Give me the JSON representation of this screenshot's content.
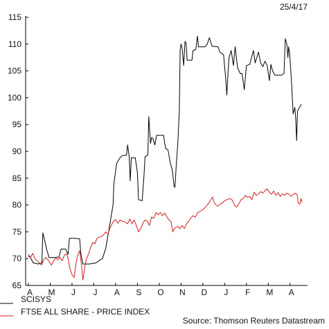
{
  "date_label": "25/4/17",
  "source": "Source: Thomson Reuters Datastream",
  "chart_data": {
    "type": "line",
    "title": "",
    "xlabel": "",
    "ylabel": "",
    "ylim": [
      65,
      115
    ],
    "y_ticks": [
      65,
      70,
      75,
      80,
      85,
      90,
      95,
      100,
      105,
      110,
      115
    ],
    "x_tick_labels": [
      "A",
      "M",
      "J",
      "J",
      "A",
      "S",
      "O",
      "N",
      "D",
      "J",
      "F",
      "M",
      "A"
    ],
    "x_range": [
      0,
      12.8
    ],
    "grid": false,
    "legend_position": "bottom-left",
    "series": [
      {
        "name": "SCISYS",
        "color": "#000000",
        "points": [
          [
            0.0,
            70.5
          ],
          [
            0.1,
            70.2
          ],
          [
            0.22,
            69.2
          ],
          [
            0.45,
            69.0
          ],
          [
            0.62,
            69.2
          ],
          [
            0.66,
            74.8
          ],
          [
            0.74,
            73.5
          ],
          [
            0.85,
            71.5
          ],
          [
            0.95,
            70.2
          ],
          [
            1.2,
            70.2
          ],
          [
            1.4,
            70.3
          ],
          [
            1.5,
            71.8
          ],
          [
            1.7,
            71.8
          ],
          [
            1.82,
            70.8
          ],
          [
            1.88,
            73.8
          ],
          [
            2.1,
            73.8
          ],
          [
            2.35,
            73.7
          ],
          [
            2.4,
            71.0
          ],
          [
            2.5,
            69.0
          ],
          [
            2.8,
            69.0
          ],
          [
            3.1,
            69.2
          ],
          [
            3.3,
            69.8
          ],
          [
            3.4,
            70.0
          ],
          [
            3.55,
            72.0
          ],
          [
            3.72,
            76.0
          ],
          [
            3.88,
            80.0
          ],
          [
            3.92,
            84.0
          ],
          [
            3.98,
            85.8
          ],
          [
            4.05,
            87.8
          ],
          [
            4.2,
            88.8
          ],
          [
            4.3,
            89.2
          ],
          [
            4.5,
            89.3
          ],
          [
            4.55,
            91.2
          ],
          [
            4.62,
            89.0
          ],
          [
            4.67,
            84.5
          ],
          [
            4.72,
            88.8
          ],
          [
            4.9,
            88.8
          ],
          [
            5.0,
            86.0
          ],
          [
            5.05,
            81.0
          ],
          [
            5.22,
            80.8
          ],
          [
            5.3,
            85.5
          ],
          [
            5.35,
            89.0
          ],
          [
            5.48,
            89.3
          ],
          [
            5.52,
            96.5
          ],
          [
            5.6,
            91.5
          ],
          [
            5.65,
            92.6
          ],
          [
            5.72,
            92.3
          ],
          [
            5.8,
            91.2
          ],
          [
            5.88,
            93.0
          ],
          [
            6.2,
            93.0
          ],
          [
            6.25,
            91.5
          ],
          [
            6.3,
            90.5
          ],
          [
            6.4,
            90.3
          ],
          [
            6.5,
            88.0
          ],
          [
            6.6,
            86.5
          ],
          [
            6.68,
            83.5
          ],
          [
            6.72,
            83.3
          ],
          [
            6.78,
            87.5
          ],
          [
            6.85,
            91.5
          ],
          [
            6.92,
            97.5
          ],
          [
            6.96,
            109.0
          ],
          [
            7.0,
            110.0
          ],
          [
            7.05,
            109.2
          ],
          [
            7.12,
            106.0
          ],
          [
            7.18,
            110.5
          ],
          [
            7.23,
            110.2
          ],
          [
            7.28,
            107.0
          ],
          [
            7.5,
            107.0
          ],
          [
            7.55,
            108.8
          ],
          [
            7.68,
            109.0
          ],
          [
            7.75,
            111.5
          ],
          [
            7.8,
            109.5
          ],
          [
            8.1,
            109.5
          ],
          [
            8.2,
            110.0
          ],
          [
            8.3,
            111.2
          ],
          [
            8.42,
            109.6
          ],
          [
            8.7,
            109.5
          ],
          [
            8.78,
            108.5
          ],
          [
            8.95,
            108.0
          ],
          [
            9.05,
            103.5
          ],
          [
            9.1,
            100.5
          ],
          [
            9.15,
            104.5
          ],
          [
            9.2,
            107.5
          ],
          [
            9.3,
            108.8
          ],
          [
            9.4,
            106.0
          ],
          [
            9.48,
            109.5
          ],
          [
            9.55,
            107.0
          ],
          [
            9.6,
            105.5
          ],
          [
            9.72,
            104.5
          ],
          [
            9.8,
            104.5
          ],
          [
            9.9,
            101.5
          ],
          [
            10.0,
            106.0
          ],
          [
            10.15,
            106.2
          ],
          [
            10.25,
            107.8
          ],
          [
            10.32,
            108.8
          ],
          [
            10.4,
            106.5
          ],
          [
            10.55,
            108.5
          ],
          [
            10.65,
            106.5
          ],
          [
            10.75,
            105.8
          ],
          [
            10.85,
            106.8
          ],
          [
            10.95,
            106.0
          ],
          [
            11.05,
            103.2
          ],
          [
            11.12,
            106.2
          ],
          [
            11.2,
            105.0
          ],
          [
            11.3,
            104.2
          ],
          [
            11.6,
            104.2
          ],
          [
            11.72,
            104.5
          ],
          [
            11.78,
            111.0
          ],
          [
            11.85,
            110.0
          ],
          [
            11.9,
            107.5
          ],
          [
            11.93,
            109.5
          ],
          [
            11.98,
            108.3
          ],
          [
            12.08,
            102.0
          ],
          [
            12.14,
            97.0
          ],
          [
            12.22,
            98.2
          ],
          [
            12.26,
            96.0
          ],
          [
            12.3,
            92.0
          ],
          [
            12.34,
            97.5
          ],
          [
            12.4,
            98.0
          ],
          [
            12.52,
            98.8
          ]
        ]
      },
      {
        "name": "FTSE ALL SHARE - PRICE INDEX",
        "color": "#cc1f1f",
        "points": [
          [
            0.0,
            70.8
          ],
          [
            0.1,
            70.2
          ],
          [
            0.2,
            71.0
          ],
          [
            0.3,
            70.0
          ],
          [
            0.4,
            69.6
          ],
          [
            0.5,
            69.2
          ],
          [
            0.6,
            68.8
          ],
          [
            0.7,
            69.8
          ],
          [
            0.8,
            70.2
          ],
          [
            0.95,
            69.5
          ],
          [
            1.05,
            68.8
          ],
          [
            1.15,
            69.5
          ],
          [
            1.25,
            70.2
          ],
          [
            1.35,
            69.8
          ],
          [
            1.45,
            70.2
          ],
          [
            1.55,
            69.6
          ],
          [
            1.65,
            70.6
          ],
          [
            1.75,
            70.9
          ],
          [
            1.82,
            70.0
          ],
          [
            1.9,
            68.2
          ],
          [
            2.0,
            67.0
          ],
          [
            2.1,
            66.5
          ],
          [
            2.18,
            69.0
          ],
          [
            2.25,
            70.5
          ],
          [
            2.35,
            71.5
          ],
          [
            2.43,
            69.0
          ],
          [
            2.5,
            66.0
          ],
          [
            2.58,
            68.2
          ],
          [
            2.65,
            69.8
          ],
          [
            2.75,
            70.8
          ],
          [
            2.85,
            72.0
          ],
          [
            2.95,
            73.0
          ],
          [
            3.05,
            72.8
          ],
          [
            3.15,
            73.8
          ],
          [
            3.25,
            74.0
          ],
          [
            3.4,
            74.2
          ],
          [
            3.55,
            75.0
          ],
          [
            3.65,
            74.5
          ],
          [
            3.72,
            75.5
          ],
          [
            3.8,
            76.2
          ],
          [
            3.9,
            77.0
          ],
          [
            4.0,
            77.3
          ],
          [
            4.1,
            76.6
          ],
          [
            4.2,
            77.2
          ],
          [
            4.3,
            77.0
          ],
          [
            4.45,
            76.8
          ],
          [
            4.55,
            76.5
          ],
          [
            4.65,
            77.4
          ],
          [
            4.75,
            76.5
          ],
          [
            4.85,
            77.2
          ],
          [
            4.95,
            76.2
          ],
          [
            5.05,
            75.0
          ],
          [
            5.15,
            75.6
          ],
          [
            5.25,
            76.6
          ],
          [
            5.35,
            77.2
          ],
          [
            5.45,
            77.0
          ],
          [
            5.55,
            76.2
          ],
          [
            5.65,
            77.8
          ],
          [
            5.75,
            77.5
          ],
          [
            5.85,
            78.6
          ],
          [
            5.95,
            78.2
          ],
          [
            6.05,
            78.6
          ],
          [
            6.15,
            78.0
          ],
          [
            6.25,
            78.5
          ],
          [
            6.35,
            77.8
          ],
          [
            6.45,
            77.2
          ],
          [
            6.55,
            76.8
          ],
          [
            6.62,
            75.0
          ],
          [
            6.68,
            75.5
          ],
          [
            6.75,
            75.8
          ],
          [
            6.85,
            76.0
          ],
          [
            6.95,
            75.6
          ],
          [
            7.05,
            76.2
          ],
          [
            7.15,
            75.6
          ],
          [
            7.25,
            76.5
          ],
          [
            7.35,
            77.0
          ],
          [
            7.45,
            77.6
          ],
          [
            7.55,
            78.0
          ],
          [
            7.65,
            77.7
          ],
          [
            7.75,
            78.5
          ],
          [
            7.85,
            78.8
          ],
          [
            7.95,
            79.0
          ],
          [
            8.05,
            79.3
          ],
          [
            8.15,
            79.8
          ],
          [
            8.25,
            80.2
          ],
          [
            8.35,
            80.9
          ],
          [
            8.45,
            81.5
          ],
          [
            8.5,
            80.6
          ],
          [
            8.6,
            80.0
          ],
          [
            8.7,
            79.8
          ],
          [
            8.8,
            80.2
          ],
          [
            8.9,
            80.4
          ],
          [
            9.0,
            80.8
          ],
          [
            9.1,
            81.0
          ],
          [
            9.25,
            81.2
          ],
          [
            9.35,
            80.9
          ],
          [
            9.45,
            80.0
          ],
          [
            9.55,
            79.6
          ],
          [
            9.65,
            80.2
          ],
          [
            9.75,
            81.0
          ],
          [
            9.85,
            81.2
          ],
          [
            9.95,
            81.8
          ],
          [
            10.05,
            81.4
          ],
          [
            10.15,
            81.6
          ],
          [
            10.25,
            81.0
          ],
          [
            10.35,
            82.4
          ],
          [
            10.45,
            81.8
          ],
          [
            10.55,
            82.0
          ],
          [
            10.65,
            82.5
          ],
          [
            10.75,
            82.2
          ],
          [
            10.85,
            82.7
          ],
          [
            10.95,
            83.0
          ],
          [
            11.05,
            82.4
          ],
          [
            11.15,
            82.0
          ],
          [
            11.25,
            82.6
          ],
          [
            11.35,
            81.8
          ],
          [
            11.45,
            82.3
          ],
          [
            11.55,
            81.6
          ],
          [
            11.65,
            82.1
          ],
          [
            11.75,
            81.8
          ],
          [
            11.85,
            82.2
          ],
          [
            11.95,
            82.0
          ],
          [
            12.05,
            81.6
          ],
          [
            12.15,
            82.0
          ],
          [
            12.25,
            82.2
          ],
          [
            12.32,
            81.9
          ],
          [
            12.38,
            80.3
          ],
          [
            12.45,
            80.2
          ],
          [
            12.5,
            81.2
          ],
          [
            12.55,
            80.5
          ]
        ]
      }
    ]
  }
}
